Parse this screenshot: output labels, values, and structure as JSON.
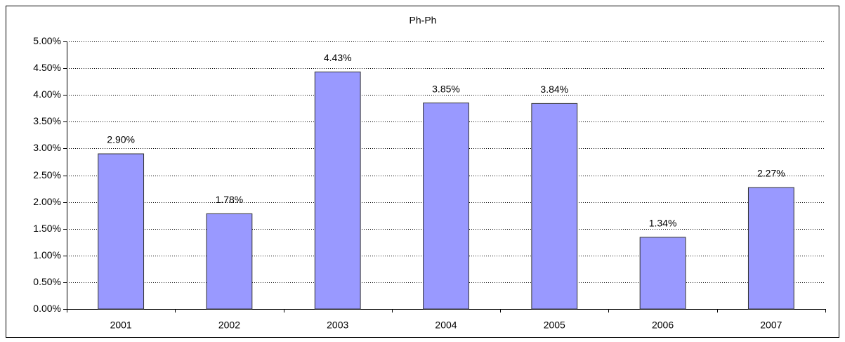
{
  "chart_data": {
    "type": "bar",
    "title": "Ph-Ph",
    "categories": [
      "2001",
      "2002",
      "2003",
      "2004",
      "2005",
      "2006",
      "2007"
    ],
    "values": [
      2.9,
      1.78,
      4.43,
      3.85,
      3.84,
      1.34,
      2.27
    ],
    "value_labels": [
      "2.90%",
      "1.78%",
      "4.43%",
      "3.85%",
      "3.84%",
      "1.34%",
      "2.27%"
    ],
    "color": "#9999ff",
    "ylim": [
      0,
      5
    ],
    "yticks": [
      {
        "value": 0,
        "label": "0.00%"
      },
      {
        "value": 0.5,
        "label": "0.50%"
      },
      {
        "value": 1,
        "label": "1.00%"
      },
      {
        "value": 1.5,
        "label": "1.50%"
      },
      {
        "value": 2,
        "label": "2.00%"
      },
      {
        "value": 2.5,
        "label": "2.50%"
      },
      {
        "value": 3,
        "label": "3.00%"
      },
      {
        "value": 3.5,
        "label": "3.50%"
      },
      {
        "value": 4,
        "label": "4.00%"
      },
      {
        "value": 4.5,
        "label": "4.50%"
      },
      {
        "value": 5,
        "label": "5.00%"
      }
    ],
    "grid": true
  }
}
